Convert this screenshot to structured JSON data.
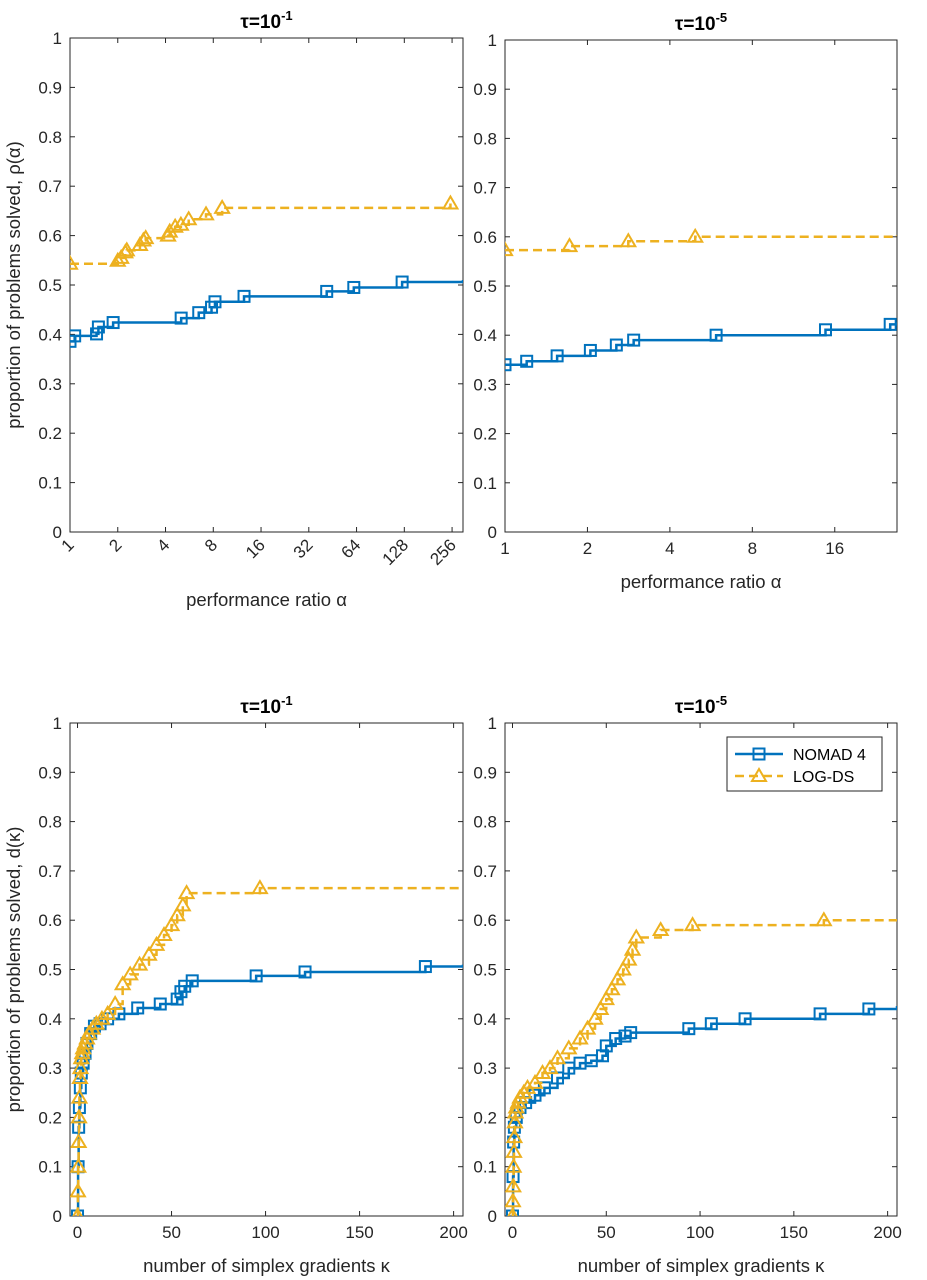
{
  "colors": {
    "nomad": "#0072BD",
    "logds": "#EDB120",
    "axis": "#262626"
  },
  "legend": {
    "entries": [
      "NOMAD 4",
      "LOG-DS"
    ],
    "placement": "top-right of bottom-right panel"
  },
  "chart_data": [
    {
      "type": "line",
      "scale_x": "log2",
      "title_prefix": "τ=10",
      "title_exp": "-1",
      "xlabel": "performance ratio α",
      "ylabel": "proportion of problems solved, ρ(α)",
      "xlim": [
        1,
        300
      ],
      "ylim": [
        0,
        1
      ],
      "xticks": [
        1,
        2,
        4,
        8,
        16,
        32,
        64,
        128,
        256
      ],
      "xtick_labels": [
        "1",
        "2",
        "4",
        "8",
        "16",
        "32",
        "64",
        "128",
        "256"
      ],
      "rotated_xticks": true,
      "yticks": [
        0,
        0.1,
        0.2,
        0.3,
        0.4,
        0.5,
        0.6,
        0.7,
        0.8,
        0.9,
        1
      ],
      "ytick_labels": [
        "0",
        "0.1",
        "0.2",
        "0.3",
        "0.4",
        "0.5",
        "0.6",
        "0.7",
        "0.8",
        "0.9",
        "1"
      ],
      "series": [
        {
          "name": "NOMAD 4",
          "x": [
            1,
            1.07,
            1.47,
            1.51,
            1.87,
            5.02,
            6.48,
            7.8,
            8.2,
            12.5,
            41.5,
            61.5,
            124,
            300
          ],
          "y": [
            0.386,
            0.397,
            0.401,
            0.415,
            0.424,
            0.433,
            0.444,
            0.455,
            0.466,
            0.477,
            0.487,
            0.495,
            0.506,
            0.51
          ],
          "marker_x": [
            1,
            1.07,
            1.47,
            1.51,
            1.87,
            5.02,
            6.48,
            7.8,
            8.2,
            12.5,
            41.5,
            61.5,
            124
          ],
          "marker_y": [
            0.386,
            0.397,
            0.401,
            0.415,
            0.424,
            0.433,
            0.444,
            0.455,
            0.466,
            0.477,
            0.487,
            0.495,
            0.506
          ]
        },
        {
          "name": "LOG-DS",
          "x": [
            1,
            2.0,
            2.1,
            2.23,
            2.28,
            2.76,
            2.9,
            3.0,
            4.15,
            4.25,
            4.6,
            5.0,
            5.6,
            7.2,
            9.1,
            250
          ],
          "y": [
            0.543,
            0.549,
            0.555,
            0.566,
            0.57,
            0.581,
            0.59,
            0.595,
            0.6,
            0.608,
            0.618,
            0.622,
            0.633,
            0.643,
            0.656,
            0.665
          ],
          "marker_x": [
            1,
            2.0,
            2.1,
            2.23,
            2.28,
            2.76,
            2.9,
            3.0,
            4.15,
            4.25,
            4.6,
            5.0,
            5.6,
            7.2,
            9.1,
            250
          ],
          "marker_y": [
            0.543,
            0.549,
            0.555,
            0.566,
            0.57,
            0.581,
            0.59,
            0.595,
            0.6,
            0.608,
            0.618,
            0.622,
            0.633,
            0.643,
            0.656,
            0.665
          ]
        }
      ]
    },
    {
      "type": "line",
      "scale_x": "log2",
      "title_prefix": "τ=10",
      "title_exp": "-5",
      "xlabel": "performance ratio α",
      "ylabel": "",
      "xlim": [
        1,
        27
      ],
      "ylim": [
        0,
        1
      ],
      "xticks": [
        1,
        2,
        4,
        8,
        16
      ],
      "xtick_labels": [
        "1",
        "2",
        "4",
        "8",
        "16"
      ],
      "rotated_xticks": false,
      "yticks": [
        0,
        0.1,
        0.2,
        0.3,
        0.4,
        0.5,
        0.6,
        0.7,
        0.8,
        0.9,
        1
      ],
      "ytick_labels": [
        "0",
        "0.1",
        "0.2",
        "0.3",
        "0.4",
        "0.5",
        "0.6",
        "0.7",
        "0.8",
        "0.9",
        "1"
      ],
      "series": [
        {
          "name": "NOMAD 4",
          "x": [
            1,
            1.2,
            1.55,
            2.05,
            2.55,
            2.95,
            5.9,
            14.8,
            25.5,
            27
          ],
          "y": [
            0.34,
            0.347,
            0.358,
            0.369,
            0.38,
            0.39,
            0.4,
            0.411,
            0.422,
            0.426
          ],
          "marker_x": [
            1,
            1.2,
            1.55,
            2.05,
            2.55,
            2.95,
            5.9,
            14.8,
            25.5
          ],
          "marker_y": [
            0.34,
            0.347,
            0.358,
            0.369,
            0.38,
            0.39,
            0.4,
            0.411,
            0.422
          ]
        },
        {
          "name": "LOG-DS",
          "x": [
            1,
            1.72,
            2.82,
            4.95,
            27
          ],
          "y": [
            0.573,
            0.581,
            0.591,
            0.6,
            0.603
          ],
          "marker_x": [
            1,
            1.72,
            2.82,
            4.95
          ],
          "marker_y": [
            0.573,
            0.581,
            0.591,
            0.6
          ]
        }
      ]
    },
    {
      "type": "line",
      "scale_x": "linear",
      "title_prefix": "τ=10",
      "title_exp": "-1",
      "xlabel": "number of simplex gradients κ",
      "ylabel": "proportion of problems solved, d(κ)",
      "xlim": [
        -4,
        205
      ],
      "ylim": [
        0,
        1
      ],
      "xticks": [
        0,
        50,
        100,
        150,
        200
      ],
      "xtick_labels": [
        "0",
        "50",
        "100",
        "150",
        "200"
      ],
      "rotated_xticks": false,
      "yticks": [
        0,
        0.1,
        0.2,
        0.3,
        0.4,
        0.5,
        0.6,
        0.7,
        0.8,
        0.9,
        1
      ],
      "ytick_labels": [
        "0",
        "0.1",
        "0.2",
        "0.3",
        "0.4",
        "0.5",
        "0.6",
        "0.7",
        "0.8",
        "0.9",
        "1"
      ],
      "series": [
        {
          "name": "NOMAD 4",
          "x": [
            0,
            0.3,
            0.6,
            1,
            1.5,
            2,
            3,
            4,
            5,
            7,
            9,
            12,
            16,
            22,
            32,
            44,
            53,
            55,
            57,
            61,
            95,
            121,
            185,
            205
          ],
          "y": [
            0,
            0.1,
            0.18,
            0.22,
            0.26,
            0.29,
            0.31,
            0.33,
            0.35,
            0.37,
            0.385,
            0.39,
            0.4,
            0.41,
            0.422,
            0.43,
            0.44,
            0.455,
            0.466,
            0.477,
            0.487,
            0.495,
            0.506,
            0.51
          ],
          "marker_x": [
            0,
            0.3,
            0.6,
            1,
            1.5,
            2,
            3,
            4,
            5,
            7,
            9,
            12,
            16,
            22,
            32,
            44,
            53,
            55,
            57,
            61,
            95,
            121,
            185
          ],
          "marker_y": [
            0,
            0.1,
            0.18,
            0.22,
            0.26,
            0.29,
            0.31,
            0.33,
            0.35,
            0.37,
            0.385,
            0.39,
            0.4,
            0.41,
            0.422,
            0.43,
            0.44,
            0.455,
            0.466,
            0.477,
            0.487,
            0.495,
            0.506
          ]
        },
        {
          "name": "LOG-DS",
          "x": [
            0,
            0.2,
            0.4,
            0.6,
            0.8,
            1,
            1.3,
            1.6,
            2,
            2.5,
            3,
            4,
            5,
            6,
            8,
            10,
            13,
            16,
            20,
            24,
            28,
            33,
            38,
            42,
            46,
            50,
            53,
            56,
            58,
            97,
            205
          ],
          "y": [
            0,
            0.05,
            0.1,
            0.15,
            0.2,
            0.24,
            0.28,
            0.3,
            0.32,
            0.33,
            0.34,
            0.35,
            0.36,
            0.37,
            0.38,
            0.39,
            0.4,
            0.41,
            0.43,
            0.47,
            0.49,
            0.51,
            0.53,
            0.55,
            0.57,
            0.59,
            0.61,
            0.63,
            0.655,
            0.665,
            0.666
          ],
          "marker_x": [
            0,
            0.2,
            0.4,
            0.6,
            0.8,
            1,
            1.3,
            1.6,
            2,
            2.5,
            3,
            4,
            5,
            6,
            8,
            10,
            13,
            16,
            20,
            24,
            28,
            33,
            38,
            42,
            46,
            50,
            53,
            56,
            58,
            97
          ],
          "marker_y": [
            0,
            0.05,
            0.1,
            0.15,
            0.2,
            0.24,
            0.28,
            0.3,
            0.32,
            0.33,
            0.34,
            0.35,
            0.36,
            0.37,
            0.38,
            0.39,
            0.4,
            0.41,
            0.43,
            0.47,
            0.49,
            0.51,
            0.53,
            0.55,
            0.57,
            0.59,
            0.61,
            0.63,
            0.655,
            0.665
          ]
        }
      ]
    },
    {
      "type": "line",
      "scale_x": "linear",
      "title_prefix": "τ=10",
      "title_exp": "-5",
      "xlabel": "number of simplex gradients κ",
      "ylabel": "",
      "xlim": [
        -4,
        205
      ],
      "ylim": [
        0,
        1
      ],
      "xticks": [
        0,
        50,
        100,
        150,
        200
      ],
      "xtick_labels": [
        "0",
        "50",
        "100",
        "150",
        "200"
      ],
      "rotated_xticks": false,
      "yticks": [
        0,
        0.1,
        0.2,
        0.3,
        0.4,
        0.5,
        0.6,
        0.7,
        0.8,
        0.9,
        1
      ],
      "ytick_labels": [
        "0",
        "0.1",
        "0.2",
        "0.3",
        "0.4",
        "0.5",
        "0.6",
        "0.7",
        "0.8",
        "0.9",
        "1"
      ],
      "series": [
        {
          "name": "NOMAD 4",
          "x": [
            0,
            0.3,
            0.6,
            1,
            2,
            4,
            7,
            12,
            17,
            24,
            30,
            36,
            42,
            48,
            50,
            55,
            60,
            63,
            94,
            106,
            124,
            164,
            190,
            205
          ],
          "y": [
            0,
            0.08,
            0.15,
            0.18,
            0.2,
            0.22,
            0.23,
            0.245,
            0.26,
            0.28,
            0.3,
            0.31,
            0.315,
            0.325,
            0.345,
            0.36,
            0.365,
            0.372,
            0.38,
            0.39,
            0.4,
            0.41,
            0.42,
            0.426
          ],
          "marker_x": [
            0,
            0.3,
            0.6,
            1,
            2,
            4,
            7,
            12,
            17,
            24,
            30,
            36,
            42,
            48,
            50,
            55,
            60,
            63,
            94,
            106,
            124,
            164,
            190
          ],
          "marker_y": [
            0,
            0.08,
            0.15,
            0.18,
            0.2,
            0.22,
            0.23,
            0.245,
            0.26,
            0.28,
            0.3,
            0.31,
            0.315,
            0.325,
            0.345,
            0.36,
            0.365,
            0.372,
            0.38,
            0.39,
            0.4,
            0.41,
            0.42
          ]
        },
        {
          "name": "LOG-DS",
          "x": [
            0,
            0.2,
            0.4,
            0.6,
            0.8,
            1,
            1.3,
            1.6,
            2,
            3,
            4,
            6,
            8,
            12,
            16,
            20,
            24,
            30,
            36,
            40,
            44,
            47,
            50,
            53,
            56,
            59,
            62,
            64,
            66,
            79,
            96,
            166,
            205
          ],
          "y": [
            0,
            0.03,
            0.06,
            0.1,
            0.13,
            0.16,
            0.19,
            0.21,
            0.22,
            0.23,
            0.24,
            0.25,
            0.26,
            0.27,
            0.29,
            0.3,
            0.32,
            0.34,
            0.36,
            0.38,
            0.4,
            0.42,
            0.44,
            0.46,
            0.48,
            0.5,
            0.52,
            0.54,
            0.565,
            0.58,
            0.59,
            0.6,
            0.603
          ],
          "marker_x": [
            0,
            0.2,
            0.4,
            0.6,
            0.8,
            1,
            1.3,
            1.6,
            2,
            3,
            4,
            6,
            8,
            12,
            16,
            20,
            24,
            30,
            36,
            40,
            44,
            47,
            50,
            53,
            56,
            59,
            62,
            64,
            66,
            79,
            96,
            166
          ],
          "marker_y": [
            0,
            0.03,
            0.06,
            0.1,
            0.13,
            0.16,
            0.19,
            0.21,
            0.22,
            0.23,
            0.24,
            0.25,
            0.26,
            0.27,
            0.29,
            0.3,
            0.32,
            0.34,
            0.36,
            0.38,
            0.4,
            0.42,
            0.44,
            0.46,
            0.48,
            0.5,
            0.52,
            0.54,
            0.565,
            0.58,
            0.59,
            0.6
          ]
        }
      ]
    }
  ]
}
